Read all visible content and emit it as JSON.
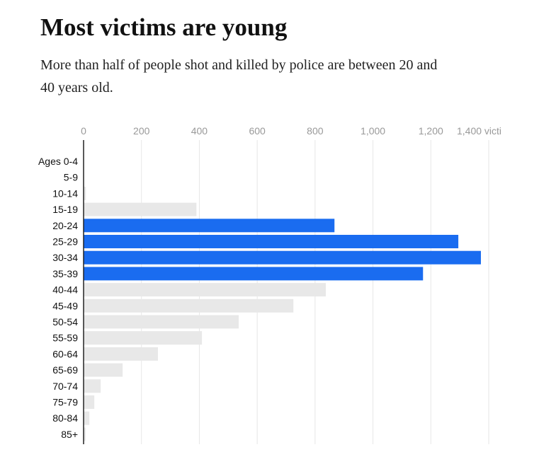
{
  "chart_data": {
    "type": "bar",
    "orientation": "horizontal",
    "title": "Most victims are young",
    "subtitle": "More than half of people shot and killed by police are between 20 and 40 years old.",
    "categories": [
      "Ages 0-4",
      "5-9",
      "10-14",
      "15-19",
      "20-24",
      "25-29",
      "30-34",
      "35-39",
      "40-44",
      "45-49",
      "50-54",
      "55-59",
      "60-64",
      "65-69",
      "70-74",
      "75-79",
      "80-84",
      "85+"
    ],
    "values": [
      0,
      1,
      8,
      390,
      867,
      1295,
      1373,
      1173,
      837,
      725,
      536,
      409,
      257,
      135,
      59,
      37,
      20,
      7
    ],
    "colors": [
      "#e8e8e8",
      "#e8e8e8",
      "#e8e8e8",
      "#e8e8e8",
      "#1a6cf0",
      "#1a6cf0",
      "#1a6cf0",
      "#1a6cf0",
      "#e8e8e8",
      "#e8e8e8",
      "#e8e8e8",
      "#e8e8e8",
      "#e8e8e8",
      "#e8e8e8",
      "#e8e8e8",
      "#e8e8e8",
      "#e8e8e8",
      "#e8e8e8"
    ],
    "xlim": [
      0,
      1400
    ],
    "xticks": [
      0,
      {
        "value": 200,
        "label": "200"
      },
      400,
      600,
      800,
      {
        "value": 1000,
        "label": "1,000"
      },
      {
        "value": 1200,
        "label": "1,200"
      },
      {
        "value": 1400,
        "label": "1,400 victi"
      }
    ],
    "grid": true
  }
}
